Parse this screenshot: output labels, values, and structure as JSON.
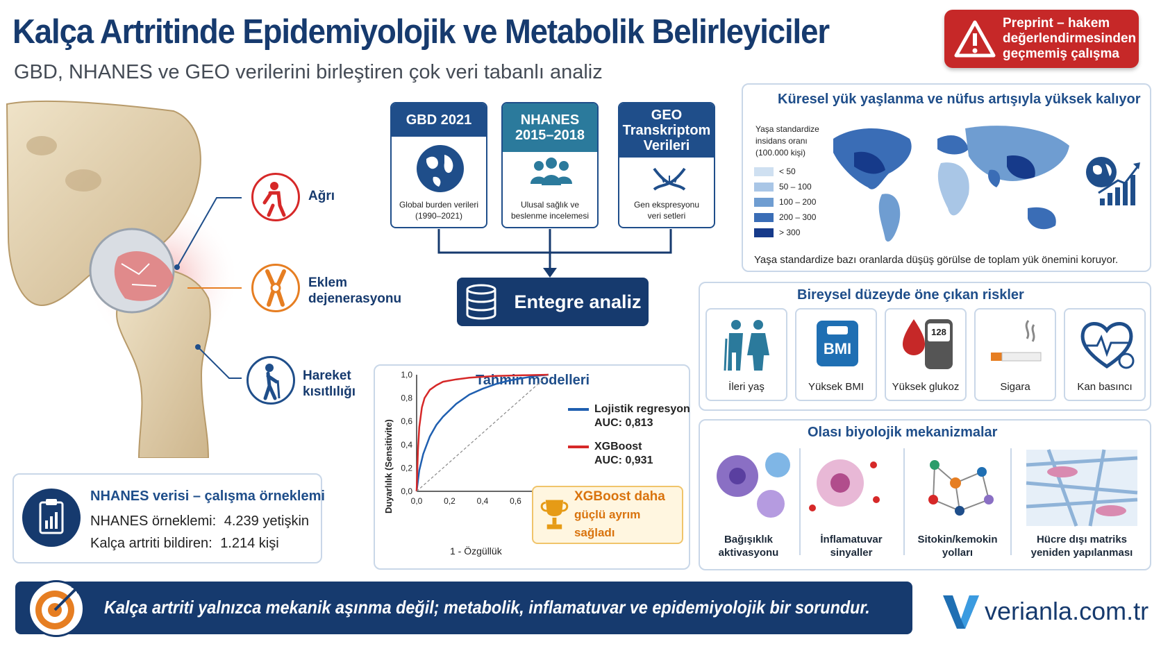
{
  "header": {
    "title": "Kalça Artritinde Epidemiyolojik ve Metabolik Belirleyiciler",
    "subtitle": "GBD, NHANES ve GEO verilerini birleştiren çok veri tabanlı analiz",
    "preprint_line1": "Preprint – hakem",
    "preprint_line2": "değerlendirmesinden",
    "preprint_line3": "geçmemiş çalışma"
  },
  "symptoms": [
    {
      "label": "Ağrı"
    },
    {
      "label1": "Eklem",
      "label2": "dejenerasyonu"
    },
    {
      "label1": "Hareket",
      "label2": "kısıtlılığı"
    }
  ],
  "sources": [
    {
      "title": "GBD 2021",
      "desc1": "Global burden verileri",
      "desc2": "(1990–2021)"
    },
    {
      "title1": "NHANES",
      "title2": "2015–2018",
      "desc1": "Ulusal sağlık ve",
      "desc2": "beslenme incelemesi"
    },
    {
      "title1": "GEO",
      "title2": "Transkriptom",
      "title3": "Verileri",
      "desc1": "Gen ekspresyonu",
      "desc2": "veri setleri"
    }
  ],
  "integrated_label": "Entegre analiz",
  "sample": {
    "title": "NHANES verisi – çalışma örneklemi",
    "row1_label": "NHANES örneklemi:",
    "row1_value": "4.239 yetişkin",
    "row2_label": "Kalça artriti bildiren:",
    "row2_value": "1.214 kişi"
  },
  "global": {
    "title": "Küresel yük yaşlanma ve nüfus artışıyla yüksek kalıyor",
    "legend_title1": "Yaşa standardize",
    "legend_title2": "insidans oranı",
    "legend_title3": "(100.000 kişi)",
    "legend": [
      {
        "label": "< 50",
        "color": "#cfe0f1"
      },
      {
        "label": "50 – 100",
        "color": "#a9c6e6"
      },
      {
        "label": "100 – 200",
        "color": "#6f9dd1"
      },
      {
        "label": "200 – 300",
        "color": "#3a6db6"
      },
      {
        "label": "> 300",
        "color": "#163a8a"
      }
    ],
    "footnote": "Yaşa standardize bazı oranlarda düşüş görülse de toplam yük önemini koruyor."
  },
  "chart_data": {
    "type": "line",
    "title": "Tahmin modelleri",
    "xlabel": "1 - Özgüllük",
    "ylabel": "Duyarlılık (Sensitivite)",
    "x_ticks": [
      "0,0",
      "0,2",
      "0,4",
      "0,6",
      "0,"
    ],
    "y_ticks": [
      "0,0",
      "0,2",
      "0,4",
      "0,6",
      "0,8",
      "1,0"
    ],
    "xlim": [
      0,
      1
    ],
    "ylim": [
      0,
      1
    ],
    "series": [
      {
        "name": "Lojistik regresyon",
        "auc_label": "AUC: 0,813",
        "color": "#1f5fb0",
        "x": [
          0,
          0.02,
          0.05,
          0.1,
          0.15,
          0.2,
          0.3,
          0.4,
          0.5,
          0.6,
          0.7,
          0.8,
          0.9,
          1.0
        ],
        "values": [
          0,
          0.18,
          0.32,
          0.47,
          0.57,
          0.64,
          0.75,
          0.83,
          0.88,
          0.92,
          0.95,
          0.97,
          0.99,
          1.0
        ]
      },
      {
        "name": "XGBoost",
        "auc_label": "AUC: 0,931",
        "color": "#d62828",
        "x": [
          0,
          0.01,
          0.02,
          0.04,
          0.06,
          0.1,
          0.15,
          0.2,
          0.3,
          0.4,
          0.6,
          0.8,
          1.0
        ],
        "values": [
          0,
          0.35,
          0.55,
          0.72,
          0.8,
          0.87,
          0.91,
          0.94,
          0.96,
          0.975,
          0.99,
          0.995,
          1.0
        ]
      },
      {
        "name": "",
        "color": "#888888",
        "x": [
          0,
          1
        ],
        "values": [
          0,
          1
        ]
      }
    ],
    "callout1": "XGBoost daha",
    "callout2": "güçlü ayrım sağladı"
  },
  "risks": {
    "title": "Bireysel düzeyde öne çıkan riskler",
    "items": [
      "İleri yaş",
      "Yüksek BMI",
      "Yüksek glukoz",
      "Sigara",
      "Kan basıncı"
    ],
    "bmi_text": "BMI",
    "glucose_value": "128"
  },
  "mechanisms": {
    "title": "Olası biyolojik mekanizmalar",
    "items": [
      {
        "l1": "Bağışıklık",
        "l2": "aktivasyonu"
      },
      {
        "l1": "İnflamatuvar",
        "l2": "sinyaller"
      },
      {
        "l1": "Sitokin/kemokin",
        "l2": "yolları"
      },
      {
        "l1": "Hücre dışı matriks",
        "l2": "yeniden yapılanması"
      }
    ]
  },
  "conclusion": "Kalça artriti yalnızca mekanik aşınma değil; metabolik, inflamatuvar ve epidemiyolojik bir sorundur.",
  "brand": "verianla.com.tr"
}
